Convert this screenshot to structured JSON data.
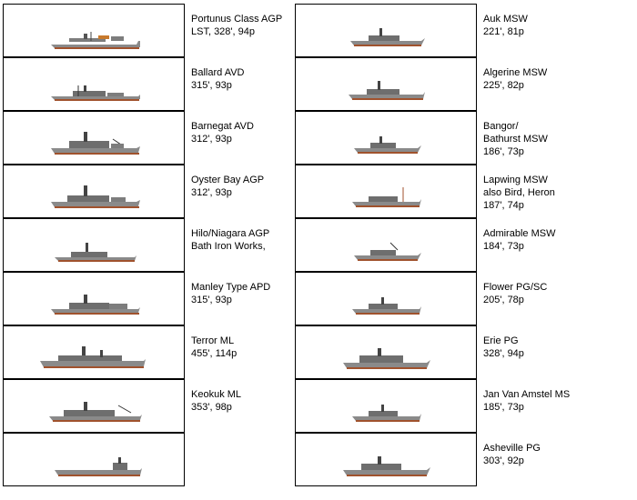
{
  "left_column": [
    {
      "lines": [
        "Portunus Class AGP",
        "LST, 328', 94p"
      ],
      "icon": "ship-silhouette-icon"
    },
    {
      "lines": [
        "Ballard AVD",
        "315', 93p"
      ],
      "icon": "ship-silhouette-icon"
    },
    {
      "lines": [
        "Barnegat AVD",
        "312', 93p"
      ],
      "icon": "ship-silhouette-icon"
    },
    {
      "lines": [
        "Oyster Bay AGP",
        "312', 93p"
      ],
      "icon": "ship-silhouette-icon"
    },
    {
      "lines": [
        "Hilo/Niagara AGP",
        "Bath Iron Works,"
      ],
      "icon": "ship-silhouette-icon"
    },
    {
      "lines": [
        "Manley Type APD",
        "315', 93p"
      ],
      "icon": "ship-silhouette-icon"
    },
    {
      "lines": [
        "Terror ML",
        "455', 114p"
      ],
      "icon": "ship-silhouette-icon"
    },
    {
      "lines": [
        "Keokuk ML",
        "353', 98p"
      ],
      "icon": "ship-silhouette-icon"
    },
    {
      "lines": [],
      "icon": "ship-silhouette-icon"
    }
  ],
  "right_column": [
    {
      "lines": [
        "Auk MSW",
        "221', 81p"
      ],
      "icon": "ship-silhouette-icon"
    },
    {
      "lines": [
        "Algerine MSW",
        "225', 82p"
      ],
      "icon": "ship-silhouette-icon"
    },
    {
      "lines": [
        "Bangor/",
        "Bathurst MSW",
        "186', 73p"
      ],
      "icon": "ship-silhouette-icon"
    },
    {
      "lines": [
        "Lapwing MSW",
        "also Bird, Heron",
        "187', 74p"
      ],
      "icon": "ship-silhouette-icon"
    },
    {
      "lines": [
        "Admirable MSW",
        "184', 73p"
      ],
      "icon": "ship-silhouette-icon"
    },
    {
      "lines": [
        "Flower PG/SC",
        "205', 78p"
      ],
      "icon": "ship-silhouette-icon"
    },
    {
      "lines": [
        "Erie PG",
        "328', 94p"
      ],
      "icon": "ship-silhouette-icon"
    },
    {
      "lines": [
        "Jan Van Amstel MS",
        "185', 73p"
      ],
      "icon": "ship-silhouette-icon"
    },
    {
      "lines": [
        "Asheville PG",
        "303', 92p"
      ],
      "icon": "ship-silhouette-icon"
    }
  ]
}
